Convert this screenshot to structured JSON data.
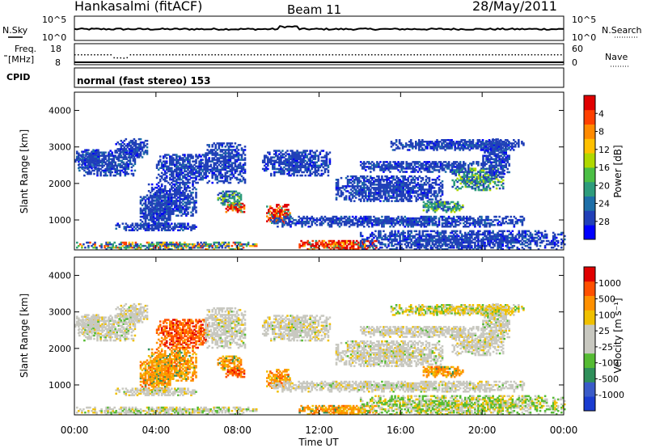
{
  "header": {
    "station": "Hankasalmi (fitACF)",
    "beam": "Beam 11",
    "date": "28/May/2011",
    "mode": "normal (fast stereo) 153"
  },
  "side_labels": {
    "nsky": "N.Sky",
    "nsearch": "N.Search",
    "freq_line1": "Freq.",
    "freq_line2": "[MHz]",
    "nave": "Nave",
    "cpid": "CPID"
  },
  "noise_axis": {
    "left_top": "10^5",
    "left_bottom": "10^0",
    "right_top": "10^5",
    "right_bottom": "10^0"
  },
  "freq_axis": {
    "left_top": "18",
    "left_bottom": "8",
    "right_top": "60",
    "right_bottom": "0"
  },
  "chart_data": [
    {
      "type": "heatmap",
      "name": "power",
      "ylabel": "Slant Range [km]",
      "xlim": [
        0,
        24
      ],
      "ylim": [
        180,
        4500
      ],
      "y_ticks": [
        "1000",
        "2000",
        "3000",
        "4000"
      ],
      "colorbar": {
        "label": "Power [dB]",
        "ticks": [
          "4",
          "8",
          "12",
          "16",
          "20",
          "24",
          "28"
        ],
        "colors": [
          "#0000ff",
          "#2140b8",
          "#1e6fa8",
          "#2e9c7c",
          "#4bbf45",
          "#b0d800",
          "#ffc000",
          "#ff8a00",
          "#ff4000",
          "#e00000"
        ]
      }
    },
    {
      "type": "heatmap",
      "name": "velocity",
      "ylabel": "Slant Range [km]",
      "xlabel": "Time UT",
      "xlim": [
        0,
        24
      ],
      "ylim": [
        180,
        4500
      ],
      "x_ticks": [
        "00:00",
        "04:00",
        "08:00",
        "12:00",
        "16:00",
        "20:00",
        "00:00"
      ],
      "y_ticks": [
        "1000",
        "2000",
        "3000",
        "4000"
      ],
      "colorbar": {
        "label": "Velocity [m s⁻¹]",
        "ticks": [
          "1000",
          "500",
          "100",
          "25",
          "-25",
          "-100",
          "-500",
          "-1000"
        ],
        "colors": [
          "#1a3cd0",
          "#3a5bc8",
          "#2f8f5a",
          "#55bb33",
          "#c8c8c0",
          "#c8c8c0",
          "#f0c000",
          "#ff9000",
          "#ff5000",
          "#e00000"
        ]
      }
    }
  ],
  "patches": [
    {
      "t0": 0.0,
      "t1": 8.9,
      "r0": 180,
      "r1": 380,
      "pw": "mixed",
      "vel": "lowgray"
    },
    {
      "t0": 0.2,
      "t1": 3.0,
      "r0": 2200,
      "r1": 2900,
      "pw": "blue",
      "vel": "gray"
    },
    {
      "t0": 2.0,
      "t1": 3.6,
      "r0": 2700,
      "r1": 3200,
      "pw": "blue",
      "vel": "gray"
    },
    {
      "t0": 3.2,
      "t1": 4.8,
      "r0": 800,
      "r1": 1700,
      "pw": "blue",
      "vel": "orange"
    },
    {
      "t0": 4.0,
      "t1": 6.6,
      "r0": 2000,
      "r1": 2800,
      "pw": "blue",
      "vel": "red"
    },
    {
      "t0": 3.6,
      "t1": 6.0,
      "r0": 1100,
      "r1": 2000,
      "pw": "blue",
      "vel": "orange"
    },
    {
      "t0": 6.4,
      "t1": 8.4,
      "r0": 2000,
      "r1": 3100,
      "pw": "blue",
      "vel": "gray"
    },
    {
      "t0": 7.4,
      "t1": 8.4,
      "r0": 1200,
      "r1": 1500,
      "pw": "red",
      "vel": "red"
    },
    {
      "t0": 7.0,
      "t1": 8.2,
      "r0": 1400,
      "r1": 1800,
      "pw": "green",
      "vel": "orange"
    },
    {
      "t0": 2.0,
      "t1": 6.0,
      "r0": 700,
      "r1": 900,
      "pw": "blue",
      "vel": "gray"
    },
    {
      "t0": 9.4,
      "t1": 10.6,
      "r0": 900,
      "r1": 1400,
      "pw": "red",
      "vel": "orange"
    },
    {
      "t0": 9.2,
      "t1": 12.5,
      "r0": 2200,
      "r1": 2900,
      "pw": "blue",
      "vel": "gray"
    },
    {
      "t0": 11.0,
      "t1": 14.8,
      "r0": 180,
      "r1": 450,
      "pw": "hot",
      "vel": "orange"
    },
    {
      "t0": 9.6,
      "t1": 22.0,
      "r0": 800,
      "r1": 1100,
      "pw": "blue",
      "vel": "gray"
    },
    {
      "t0": 12.8,
      "t1": 18.0,
      "r0": 1500,
      "r1": 2200,
      "pw": "blue",
      "vel": "gray"
    },
    {
      "t0": 14.0,
      "t1": 20.0,
      "r0": 2300,
      "r1": 2600,
      "pw": "blue",
      "vel": "gray"
    },
    {
      "t0": 17.0,
      "t1": 19.0,
      "r0": 1200,
      "r1": 1500,
      "pw": "green",
      "vel": "orange"
    },
    {
      "t0": 18.5,
      "t1": 21.0,
      "r0": 1800,
      "r1": 2400,
      "pw": "green",
      "vel": "gray"
    },
    {
      "t0": 20.0,
      "t1": 21.3,
      "r0": 2200,
      "r1": 3200,
      "pw": "blue",
      "vel": "gray"
    },
    {
      "t0": 15.5,
      "t1": 22.0,
      "r0": 2900,
      "r1": 3200,
      "pw": "blue",
      "vel": "yellow"
    },
    {
      "t0": 14.0,
      "t1": 24.0,
      "r0": 180,
      "r1": 700,
      "pw": "blue",
      "vel": "green"
    },
    {
      "t0": 0.0,
      "t1": 1.2,
      "r0": 2400,
      "r1": 2900,
      "pw": "blue",
      "vel": "gray"
    }
  ]
}
